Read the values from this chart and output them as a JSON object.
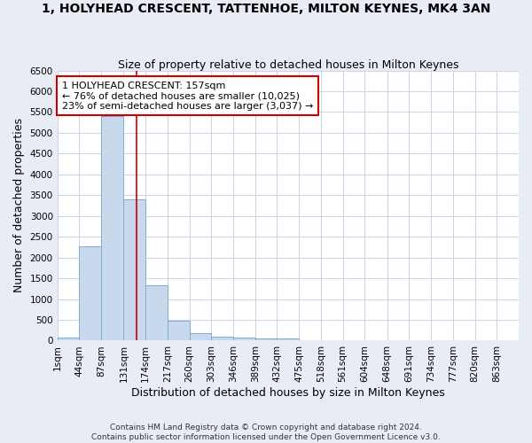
{
  "title": "1, HOLYHEAD CRESCENT, TATTENHOE, MILTON KEYNES, MK4 3AN",
  "subtitle": "Size of property relative to detached houses in Milton Keynes",
  "xlabel": "Distribution of detached houses by size in Milton Keynes",
  "ylabel": "Number of detached properties",
  "bar_color": "#c8d9ee",
  "bar_edge_color": "#7bafd4",
  "bar_left_edges": [
    1,
    44,
    87,
    131,
    174,
    217,
    260,
    303,
    346,
    389,
    432,
    475,
    518,
    561,
    604,
    648,
    691,
    734,
    777,
    820
  ],
  "bar_heights": [
    75,
    2270,
    5400,
    3390,
    1330,
    470,
    185,
    95,
    70,
    60,
    55,
    0,
    0,
    0,
    0,
    0,
    0,
    0,
    0,
    0
  ],
  "bin_width": 43,
  "x_tick_labels": [
    "1sqm",
    "44sqm",
    "87sqm",
    "131sqm",
    "174sqm",
    "217sqm",
    "260sqm",
    "303sqm",
    "346sqm",
    "389sqm",
    "432sqm",
    "475sqm",
    "518sqm",
    "561sqm",
    "604sqm",
    "648sqm",
    "691sqm",
    "734sqm",
    "777sqm",
    "820sqm",
    "863sqm"
  ],
  "x_tick_positions": [
    1,
    44,
    87,
    131,
    174,
    217,
    260,
    303,
    346,
    389,
    432,
    475,
    518,
    561,
    604,
    648,
    691,
    734,
    777,
    820,
    863
  ],
  "ylim": [
    0,
    6500
  ],
  "xlim": [
    1,
    906
  ],
  "vline_x": 157,
  "vline_color": "#cc0000",
  "annotation_text": "1 HOLYHEAD CRESCENT: 157sqm\n← 76% of detached houses are smaller (10,025)\n23% of semi-detached houses are larger (3,037) →",
  "annotation_box_color": "#ffffff",
  "annotation_box_edge_color": "#cc0000",
  "footer_line1": "Contains HM Land Registry data © Crown copyright and database right 2024.",
  "footer_line2": "Contains public sector information licensed under the Open Government Licence v3.0.",
  "plot_bg_color": "#ffffff",
  "fig_bg_color": "#e8edf5",
  "grid_color": "#c8d4e8",
  "title_fontsize": 10,
  "subtitle_fontsize": 9,
  "axis_label_fontsize": 9,
  "tick_fontsize": 7.5,
  "annotation_fontsize": 8,
  "footer_fontsize": 6.5
}
